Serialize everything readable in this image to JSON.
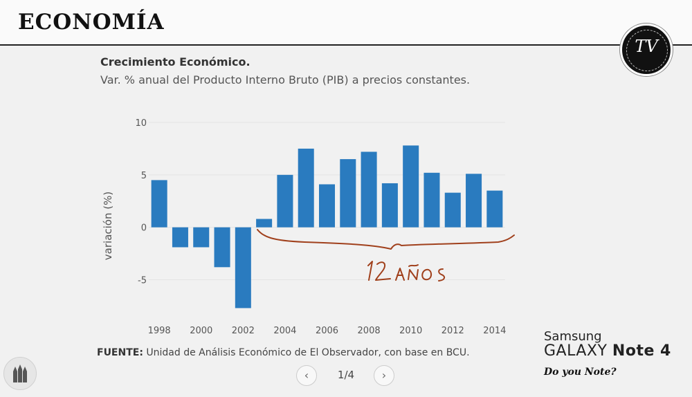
{
  "header": {
    "title": "ECONOMÍA"
  },
  "logo": {
    "text": "TV",
    "icon": "tv-channel-logo"
  },
  "chart_data": {
    "type": "bar",
    "title": "Crecimiento Económico.",
    "subtitle": "Var. % anual del Producto Interno Bruto (PIB) a precios constantes.",
    "ylabel": "variación (%)",
    "xlabel": "",
    "categories": [
      "1998",
      "1999",
      "2000",
      "2001",
      "2002",
      "2003",
      "2004",
      "2005",
      "2006",
      "2007",
      "2008",
      "2009",
      "2010",
      "2011",
      "2012",
      "2013",
      "2014"
    ],
    "values": [
      4.5,
      -1.9,
      -1.9,
      -3.8,
      -7.7,
      0.8,
      5.0,
      7.5,
      4.1,
      6.5,
      7.2,
      4.2,
      7.8,
      5.2,
      3.3,
      5.1,
      3.5
    ],
    "x_tick_labels": [
      "1998",
      "2000",
      "2002",
      "2004",
      "2006",
      "2008",
      "2010",
      "2012",
      "2014"
    ],
    "y_ticks": [
      -5,
      0,
      5,
      10
    ],
    "ylim": [
      -8,
      10
    ],
    "grid": true,
    "color": "#2a7bbf",
    "annotation": "12 AÑOS"
  },
  "source": {
    "label": "FUENTE:",
    "text": " Unidad de Análisis Económico de El Observador, con base en BCU."
  },
  "pager": {
    "prev_icon": "chevron-left-icon",
    "next_icon": "chevron-right-icon",
    "text": "1/4"
  },
  "brand": {
    "line1": "Samsung",
    "line2a": "GALAXY",
    "line2b": "Note 4",
    "line3": "Do you Note?"
  }
}
